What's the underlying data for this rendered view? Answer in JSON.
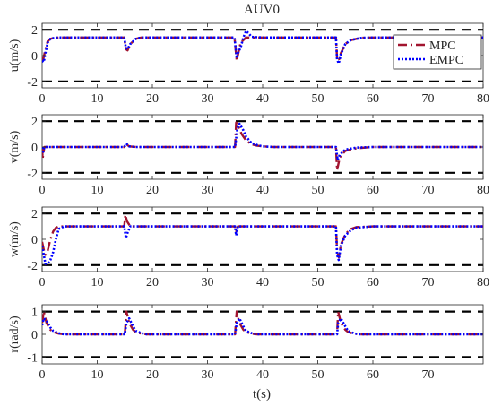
{
  "figure_title": "AUV0",
  "xlabel": "t(s)",
  "chart_data": [
    {
      "type": "line",
      "ylabel": "u(m/s)",
      "xlim": [
        0,
        80
      ],
      "ylim": [
        -2.5,
        2.5
      ],
      "xticks": [
        0,
        10,
        20,
        30,
        40,
        50,
        60,
        70,
        80
      ],
      "yticks": [
        -2,
        0,
        2
      ],
      "constraints": [
        2,
        -2
      ],
      "legend": {
        "location": "top-right",
        "entries": [
          "MPC",
          "EMPC"
        ]
      },
      "series": [
        {
          "name": "MPC",
          "color": "#A2142F",
          "dash": "10,4,2,4",
          "x": [
            0,
            0.2,
            0.5,
            1,
            1.5,
            2,
            3,
            5,
            14.9,
            15.2,
            15.5,
            16,
            17,
            18,
            20,
            34.9,
            35.3,
            35.6,
            36,
            37,
            38,
            53.3,
            53.5,
            53.8,
            54.2,
            55,
            56,
            57,
            58,
            60,
            80
          ],
          "y": [
            -0.2,
            -0.3,
            0.3,
            1.1,
            1.3,
            1.35,
            1.4,
            1.4,
            1.4,
            0.5,
            0.4,
            0.9,
            1.3,
            1.4,
            1.4,
            1.4,
            -0.4,
            0.2,
            1.0,
            1.4,
            1.4,
            1.4,
            -0.2,
            -0.4,
            0.2,
            0.9,
            1.2,
            1.3,
            1.38,
            1.4,
            1.4
          ]
        },
        {
          "name": "EMPC",
          "color": "#0000FF",
          "dash": "2,2",
          "x": [
            0,
            0.3,
            0.6,
            1,
            1.5,
            2,
            3,
            5,
            14.9,
            15.2,
            15.5,
            16,
            17,
            18,
            20,
            34.9,
            35.3,
            35.6,
            36,
            36.5,
            37,
            37.5,
            38,
            40,
            53.3,
            53.5,
            53.8,
            54.2,
            55,
            56,
            57,
            58,
            60,
            80
          ],
          "y": [
            -0.4,
            -0.5,
            0.2,
            1.0,
            1.3,
            1.35,
            1.4,
            1.4,
            1.4,
            0.6,
            0.5,
            0.9,
            1.3,
            1.4,
            1.4,
            1.4,
            -0.2,
            0.3,
            0.6,
            1.4,
            1.9,
            1.7,
            1.45,
            1.4,
            1.4,
            -0.3,
            -0.6,
            0.1,
            0.9,
            1.2,
            1.3,
            1.38,
            1.4,
            1.4
          ]
        }
      ]
    },
    {
      "type": "line",
      "ylabel": "v(m/s)",
      "xlim": [
        0,
        80
      ],
      "ylim": [
        -2.5,
        2.5
      ],
      "xticks": [
        0,
        10,
        20,
        30,
        40,
        50,
        60,
        70,
        80
      ],
      "yticks": [
        -2,
        0,
        2
      ],
      "constraints": [
        2,
        -2
      ],
      "series": [
        {
          "name": "MPC",
          "color": "#A2142F",
          "dash": "10,4,2,4",
          "x": [
            0,
            0.1,
            0.4,
            1,
            14.9,
            15.3,
            15.8,
            17,
            35,
            35.2,
            35.6,
            36.2,
            37,
            38,
            39,
            40,
            42,
            53.3,
            53.5,
            54,
            55,
            57,
            60,
            80
          ],
          "y": [
            0,
            -0.9,
            0,
            0,
            0,
            0.2,
            0.05,
            0,
            0,
            1.9,
            1.6,
            1.0,
            0.5,
            0.2,
            0.1,
            0.05,
            0,
            0,
            -1.8,
            -0.8,
            -0.3,
            -0.1,
            0,
            0
          ]
        },
        {
          "name": "EMPC",
          "color": "#0000FF",
          "dash": "2,2",
          "x": [
            0,
            0.1,
            0.4,
            1,
            14.9,
            15.3,
            15.8,
            17,
            35,
            35.4,
            35.8,
            36.5,
            37,
            38,
            39,
            40,
            42,
            53.3,
            53.6,
            54,
            55,
            57,
            60,
            80
          ],
          "y": [
            0,
            -0.5,
            0,
            0,
            0,
            0.25,
            0.05,
            0,
            0,
            1.4,
            1.8,
            1.3,
            0.8,
            0.3,
            0.15,
            0.05,
            0,
            0,
            -1.0,
            -0.6,
            -0.2,
            -0.05,
            0,
            0
          ]
        }
      ]
    },
    {
      "type": "line",
      "ylabel": "w(m/s)",
      "xlim": [
        0,
        80
      ],
      "ylim": [
        -2.5,
        2.5
      ],
      "xticks": [
        0,
        10,
        20,
        30,
        40,
        50,
        60,
        70,
        80
      ],
      "yticks": [
        -2,
        0,
        2
      ],
      "constraints": [
        2,
        -2
      ],
      "series": [
        {
          "name": "MPC",
          "color": "#A2142F",
          "dash": "10,4,2,4",
          "x": [
            0,
            0.3,
            0.6,
            1,
            1.5,
            2,
            2.5,
            3,
            5,
            14.9,
            15.1,
            15.4,
            16,
            17,
            20,
            35,
            35.2,
            35.5,
            36,
            38,
            53.3,
            53.5,
            53.8,
            54.2,
            55,
            56,
            57,
            60,
            80
          ],
          "y": [
            -0.2,
            -0.8,
            -1.2,
            -0.9,
            0,
            0.6,
            0.9,
            1.0,
            1.0,
            1.0,
            1.9,
            1.4,
            1.0,
            1.0,
            1.0,
            1.0,
            0.6,
            1.0,
            1.0,
            1.0,
            1.0,
            -0.8,
            -1.4,
            -0.4,
            0.4,
            0.8,
            0.95,
            1.0,
            1.0
          ]
        },
        {
          "name": "EMPC",
          "color": "#0000FF",
          "dash": "2,2",
          "x": [
            0,
            0.3,
            0.6,
            1,
            1.5,
            2,
            2.5,
            3,
            4,
            5,
            14.9,
            15.2,
            15.5,
            16,
            17,
            20,
            35,
            35.2,
            35.5,
            36,
            38,
            53.3,
            53.5,
            53.8,
            54.2,
            55,
            56,
            57,
            60,
            80
          ],
          "y": [
            -0.5,
            -1.2,
            -1.9,
            -1.9,
            -1.6,
            -1.0,
            0,
            0.8,
            1.0,
            1.0,
            1.0,
            0.1,
            0.5,
            1.0,
            1.0,
            1.0,
            1.0,
            0.3,
            1.0,
            1.0,
            1.0,
            1.0,
            -1.2,
            -1.6,
            -0.5,
            0.3,
            0.7,
            0.9,
            1.0,
            1.0
          ]
        }
      ]
    },
    {
      "type": "line",
      "ylabel": "r(rad/s)",
      "xlim": [
        0,
        80
      ],
      "ylim": [
        -1.3,
        1.3
      ],
      "xticks": [
        0,
        10,
        20,
        30,
        40,
        50,
        60,
        70
      ],
      "yticks": [
        -1,
        0,
        1
      ],
      "constraints": [
        1,
        -1
      ],
      "series": [
        {
          "name": "MPC",
          "color": "#A2142F",
          "dash": "10,4,2,4",
          "x": [
            0,
            0.3,
            0.8,
            1.5,
            2,
            3,
            4,
            15,
            15.3,
            15.8,
            16.5,
            17,
            18,
            19,
            35,
            35.3,
            35.8,
            36.5,
            37,
            38,
            39,
            53.5,
            53.7,
            54.2,
            55,
            55.5,
            56.5,
            57.5,
            80
          ],
          "y": [
            0.5,
            1.0,
            0.5,
            0.2,
            0.1,
            0.03,
            0,
            0,
            1.0,
            0.5,
            0.2,
            0.1,
            0.03,
            0,
            0,
            1.0,
            0.5,
            0.2,
            0.1,
            0.03,
            0,
            0,
            1.0,
            0.5,
            0.2,
            0.1,
            0.03,
            0,
            0
          ]
        },
        {
          "name": "EMPC",
          "color": "#0000FF",
          "dash": "2,2",
          "x": [
            0,
            0.3,
            0.8,
            1.5,
            2,
            3,
            4,
            15,
            15.3,
            15.8,
            16.5,
            17,
            18,
            19,
            35,
            35.3,
            35.8,
            36.5,
            37,
            38,
            39,
            53.5,
            53.7,
            54.2,
            55,
            55.5,
            56.5,
            57.5,
            80
          ],
          "y": [
            0.4,
            0.7,
            0.6,
            0.3,
            0.15,
            0.05,
            0,
            0,
            0.5,
            0.7,
            0.35,
            0.15,
            0.05,
            0,
            0,
            0.5,
            0.7,
            0.35,
            0.15,
            0.05,
            0,
            0,
            0.5,
            0.7,
            0.35,
            0.15,
            0.05,
            0,
            0
          ]
        }
      ]
    }
  ]
}
